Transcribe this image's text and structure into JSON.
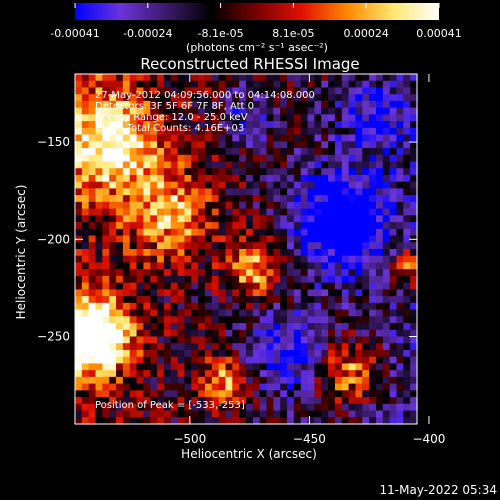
{
  "chart_data": {
    "type": "heatmap",
    "title": "Reconstructed RHESSI Image",
    "colorbar": {
      "ticks": [
        "-0.00041",
        "-0.00024",
        "-8.1e-05",
        "8.1e-05",
        "0.00024",
        "0.00041"
      ],
      "unit_label": "(photons cm⁻² s⁻¹ asec⁻²)",
      "range": [
        -0.00041,
        0.00041
      ],
      "colors": [
        "#0000ff",
        "#6a34d9",
        "#3b1a6b",
        "#000000",
        "#7a0000",
        "#e01200",
        "#ff8a00",
        "#ffe870",
        "#ffffff"
      ]
    },
    "xlabel": "Heliocentric X (arcsec)",
    "ylabel": "Heliocentric Y (arcsec)",
    "x_ticks": [
      -500,
      -450,
      -400
    ],
    "y_ticks": [
      -150,
      -200,
      -250
    ],
    "xlim": [
      -548,
      -405
    ],
    "ylim": [
      -295,
      -115
    ],
    "annotations": [
      "27-May-2012 04:09:56.000 to 04:14:08.000",
      "Detectors: 3F 5F 6F 7F 8F, Att 0",
      "Energy Range: 12.0 - 25.0 keV",
      "Clean    Total Counts: 4.16E+03"
    ],
    "peak_label": "Position of Peak = [-533,-253]",
    "peak": [
      -533,
      -253
    ]
  },
  "footer": {
    "timestamp": "11-May-2022 05:34"
  }
}
